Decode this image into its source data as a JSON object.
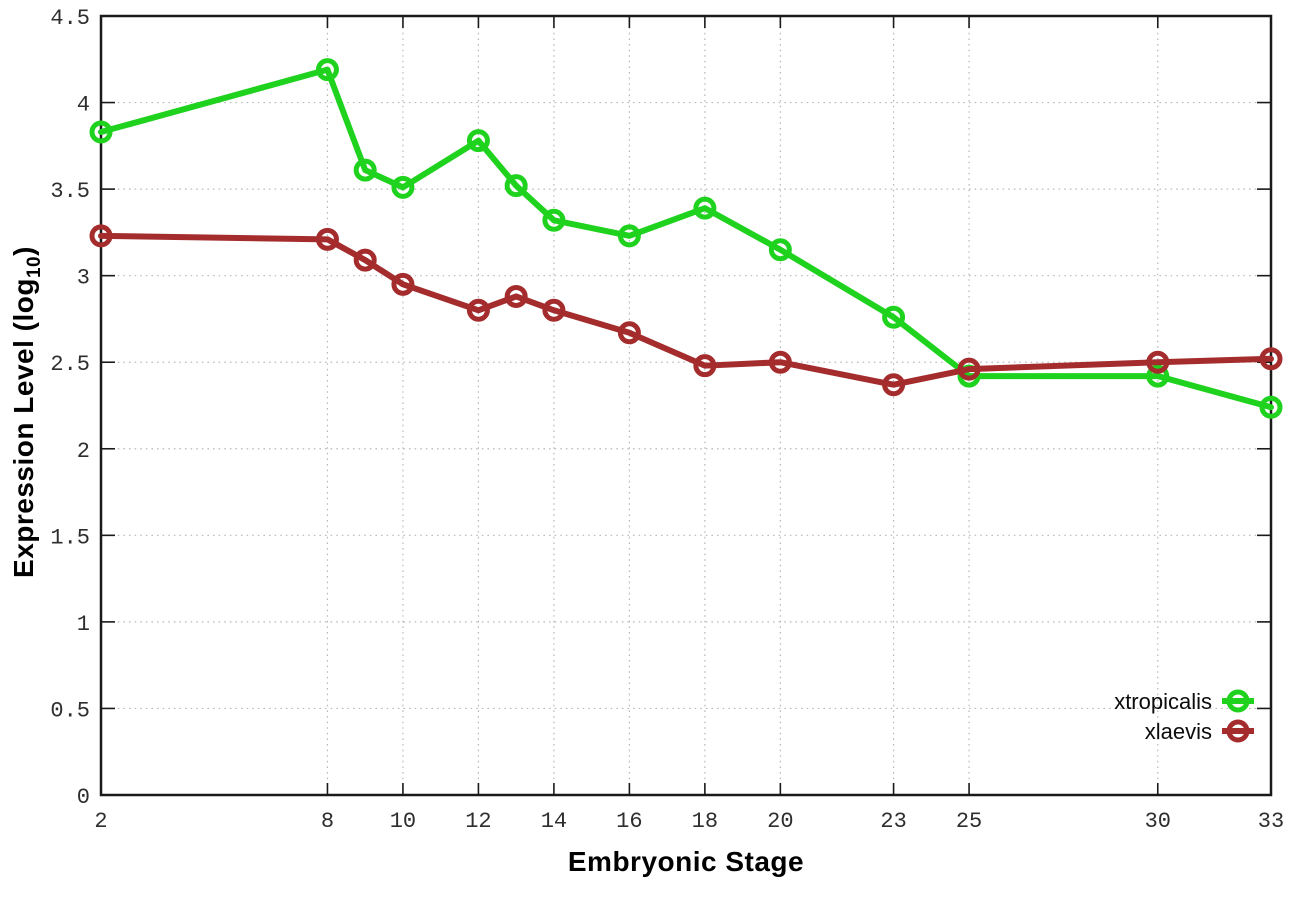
{
  "chart_data": {
    "type": "line",
    "title": "",
    "xlabel": "Embryonic Stage",
    "ylabel": {
      "text": "Expression Level (log",
      "sub": "10",
      "suffix": ")"
    },
    "x": [
      2,
      8,
      9,
      10,
      12,
      13,
      14,
      16,
      18,
      20,
      23,
      25,
      30,
      33
    ],
    "series": [
      {
        "name": "xtropicalis",
        "color": "#1ed21e",
        "values": [
          3.83,
          4.19,
          3.61,
          3.51,
          3.78,
          3.52,
          3.32,
          3.23,
          3.39,
          3.15,
          2.76,
          2.42,
          2.42,
          2.24
        ]
      },
      {
        "name": "xlaevis",
        "color": "#a42c2c",
        "values": [
          3.23,
          3.21,
          3.09,
          2.95,
          2.8,
          2.88,
          2.8,
          2.67,
          2.48,
          2.5,
          2.37,
          2.46,
          2.5,
          2.52
        ]
      }
    ],
    "xlim": [
      2,
      33
    ],
    "ylim": [
      0,
      4.5
    ],
    "xticks": [
      2,
      8,
      10,
      12,
      14,
      16,
      18,
      20,
      23,
      25,
      30,
      33
    ],
    "yticks": [
      0,
      0.5,
      1,
      1.5,
      2,
      2.5,
      3,
      3.5,
      4,
      4.5
    ],
    "grid": true,
    "grid_style": "dotted",
    "marker": "open-circle",
    "legend_position": "bottom-right-inside",
    "colors": {
      "border": "#1a1a1a",
      "grid": "#b9b9b9",
      "tick_text": "#2e2e2e",
      "background": "#ffffff"
    }
  }
}
